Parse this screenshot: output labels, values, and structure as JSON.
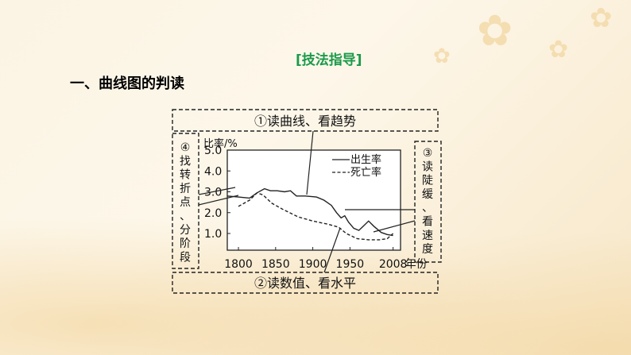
{
  "section_tag": "[技法指导]",
  "heading": "一、曲线图的判读",
  "boxes": {
    "top": "①读曲线、看趋势",
    "bottom": "②读数值、看水平",
    "right": [
      "③",
      "读",
      "陡",
      "缓",
      "、",
      "看",
      "速",
      "度"
    ],
    "left": [
      "④",
      "找",
      "转",
      "折",
      "点",
      "、",
      "分",
      "阶",
      "段"
    ]
  },
  "chart_data": {
    "type": "line",
    "ylabel": "比率/%",
    "xlabel_suffix": "年份",
    "x_ticks": [
      "1800",
      "1850",
      "1900",
      "1950",
      "2008"
    ],
    "y_ticks": [
      "1.0",
      "2.0",
      "3.0",
      "4.0",
      "5.0"
    ],
    "xlim": [
      1785,
      2018
    ],
    "ylim": [
      0.2,
      5.0
    ],
    "series": [
      {
        "name": "出生率",
        "style": "solid",
        "points": [
          [
            1785,
            2.8
          ],
          [
            1800,
            2.75
          ],
          [
            1815,
            2.7
          ],
          [
            1825,
            2.95
          ],
          [
            1835,
            3.15
          ],
          [
            1843,
            3.05
          ],
          [
            1852,
            3.05
          ],
          [
            1862,
            3.0
          ],
          [
            1870,
            3.05
          ],
          [
            1878,
            2.8
          ],
          [
            1890,
            2.8
          ],
          [
            1905,
            2.75
          ],
          [
            1915,
            2.6
          ],
          [
            1925,
            2.35
          ],
          [
            1932,
            2.0
          ],
          [
            1938,
            1.75
          ],
          [
            1943,
            1.85
          ],
          [
            1948,
            1.55
          ],
          [
            1955,
            1.25
          ],
          [
            1962,
            1.15
          ],
          [
            1968,
            1.35
          ],
          [
            1975,
            1.6
          ],
          [
            1982,
            1.35
          ],
          [
            1992,
            1.05
          ],
          [
            2000,
            0.95
          ],
          [
            2008,
            0.9
          ]
        ]
      },
      {
        "name": "死亡率",
        "style": "dashed",
        "points": [
          [
            1800,
            2.3
          ],
          [
            1815,
            2.6
          ],
          [
            1825,
            2.95
          ],
          [
            1833,
            2.85
          ],
          [
            1845,
            2.45
          ],
          [
            1860,
            2.15
          ],
          [
            1880,
            1.8
          ],
          [
            1900,
            1.6
          ],
          [
            1920,
            1.45
          ],
          [
            1935,
            1.3
          ],
          [
            1945,
            1.0
          ],
          [
            1960,
            0.75
          ],
          [
            1975,
            0.7
          ],
          [
            1990,
            0.7
          ],
          [
            2000,
            0.75
          ],
          [
            2008,
            1.0
          ]
        ]
      }
    ]
  }
}
